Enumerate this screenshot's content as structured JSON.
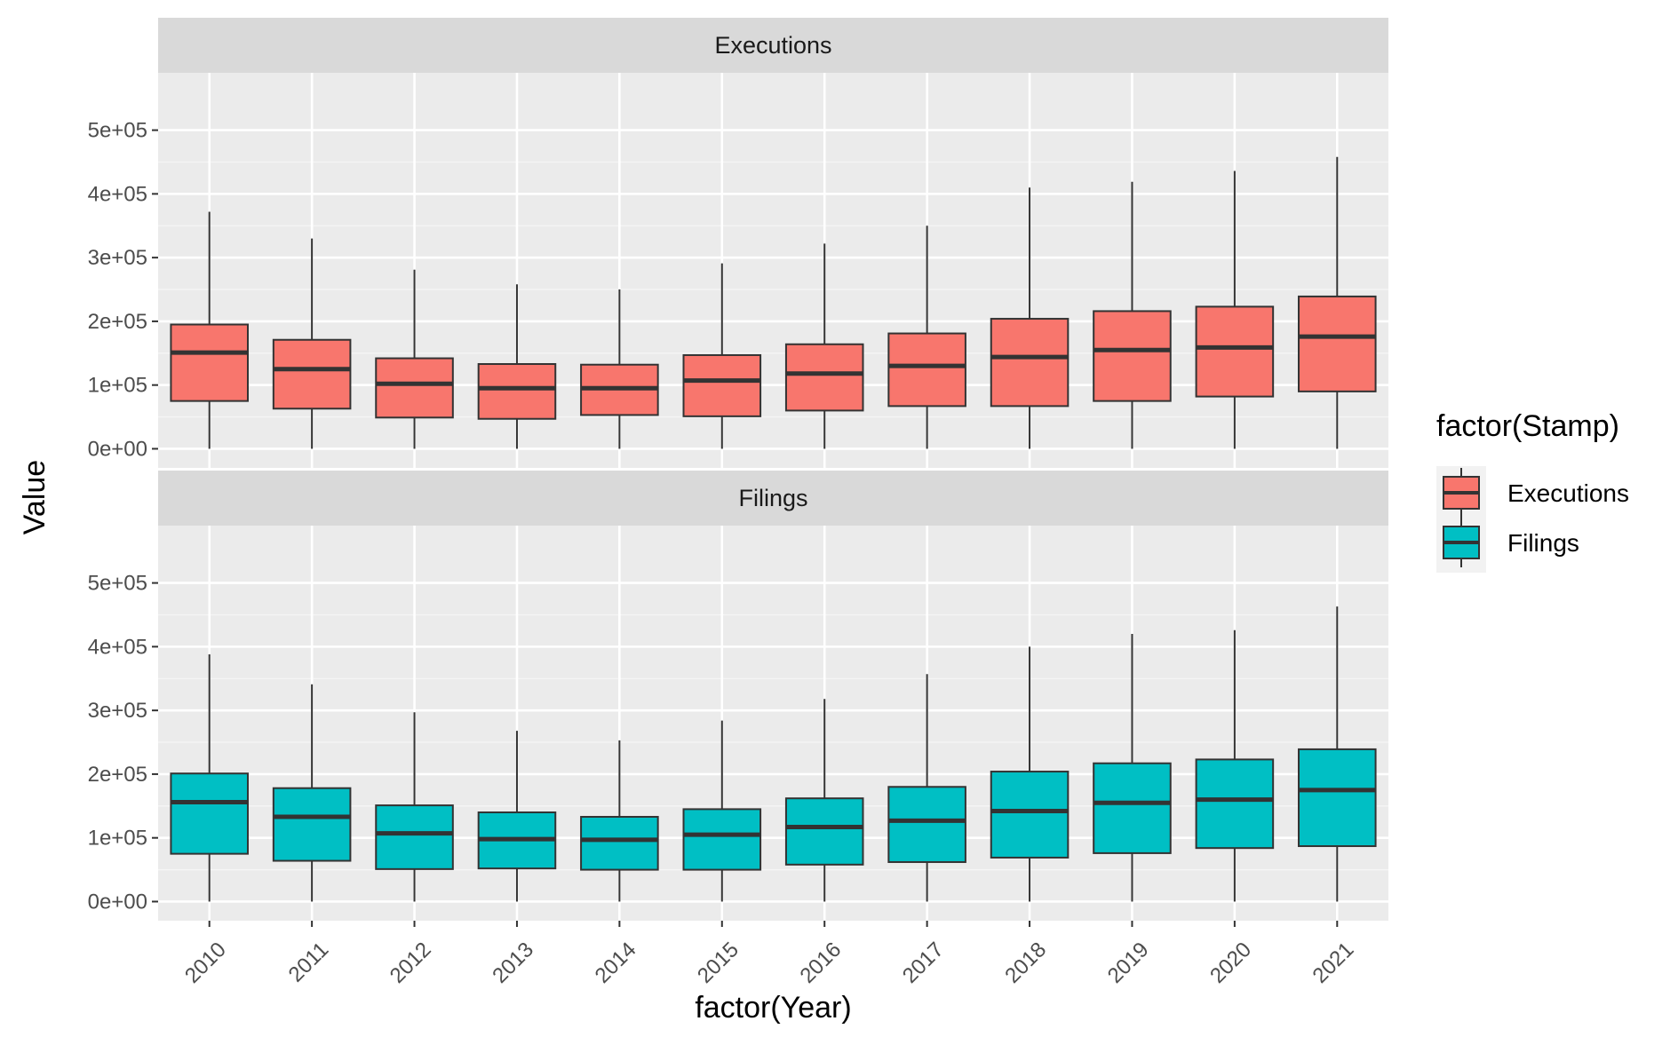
{
  "chart_data": {
    "type": "boxplot",
    "facet_variable": "Stamp",
    "xlabel": "factor(Year)",
    "ylabel": "Value",
    "ylim": [
      -30000,
      590000
    ],
    "y_ticks": [
      0,
      100000,
      200000,
      300000,
      400000,
      500000
    ],
    "y_tick_labels": [
      "0e+00",
      "1e+05",
      "2e+05",
      "3e+05",
      "4e+05",
      "5e+05"
    ],
    "categories": [
      "2010",
      "2011",
      "2012",
      "2013",
      "2014",
      "2015",
      "2016",
      "2017",
      "2018",
      "2019",
      "2020",
      "2021"
    ],
    "grid": true,
    "legend": {
      "title": "factor(Stamp)",
      "position": "right",
      "items": [
        {
          "label": "Executions",
          "color": "#F8766D"
        },
        {
          "label": "Filings",
          "color": "#00BFC4"
        }
      ]
    },
    "panels": [
      {
        "label": "Executions",
        "color": "#F8766D",
        "boxes": [
          {
            "year": "2010",
            "min": 0,
            "q1": 75000,
            "median": 151000,
            "q3": 195000,
            "max": 372000
          },
          {
            "year": "2011",
            "min": 0,
            "q1": 63000,
            "median": 125000,
            "q3": 171000,
            "max": 330000
          },
          {
            "year": "2012",
            "min": 0,
            "q1": 49000,
            "median": 102000,
            "q3": 142000,
            "max": 281000
          },
          {
            "year": "2013",
            "min": 0,
            "q1": 47000,
            "median": 95000,
            "q3": 133000,
            "max": 258000
          },
          {
            "year": "2014",
            "min": 0,
            "q1": 53000,
            "median": 95000,
            "q3": 132000,
            "max": 250000
          },
          {
            "year": "2015",
            "min": 0,
            "q1": 51000,
            "median": 107000,
            "q3": 147000,
            "max": 291000
          },
          {
            "year": "2016",
            "min": 0,
            "q1": 60000,
            "median": 118000,
            "q3": 164000,
            "max": 322000
          },
          {
            "year": "2017",
            "min": 0,
            "q1": 67000,
            "median": 130000,
            "q3": 181000,
            "max": 350000
          },
          {
            "year": "2018",
            "min": 0,
            "q1": 67000,
            "median": 144000,
            "q3": 204000,
            "max": 410000
          },
          {
            "year": "2019",
            "min": 0,
            "q1": 75000,
            "median": 155000,
            "q3": 216000,
            "max": 419000
          },
          {
            "year": "2020",
            "min": 0,
            "q1": 82000,
            "median": 159000,
            "q3": 223000,
            "max": 436000
          },
          {
            "year": "2021",
            "min": 0,
            "q1": 90000,
            "median": 176000,
            "q3": 239000,
            "max": 458000
          }
        ]
      },
      {
        "label": "Filings",
        "color": "#00BFC4",
        "boxes": [
          {
            "year": "2010",
            "min": 0,
            "q1": 75000,
            "median": 156000,
            "q3": 201000,
            "max": 388000
          },
          {
            "year": "2011",
            "min": 0,
            "q1": 64000,
            "median": 133000,
            "q3": 178000,
            "max": 341000
          },
          {
            "year": "2012",
            "min": 0,
            "q1": 51000,
            "median": 107000,
            "q3": 151000,
            "max": 297000
          },
          {
            "year": "2013",
            "min": 0,
            "q1": 52000,
            "median": 98000,
            "q3": 140000,
            "max": 268000
          },
          {
            "year": "2014",
            "min": 0,
            "q1": 50000,
            "median": 97000,
            "q3": 133000,
            "max": 253000
          },
          {
            "year": "2015",
            "min": 0,
            "q1": 50000,
            "median": 105000,
            "q3": 145000,
            "max": 284000
          },
          {
            "year": "2016",
            "min": 0,
            "q1": 58000,
            "median": 117000,
            "q3": 162000,
            "max": 318000
          },
          {
            "year": "2017",
            "min": 0,
            "q1": 62000,
            "median": 127000,
            "q3": 180000,
            "max": 357000
          },
          {
            "year": "2018",
            "min": 0,
            "q1": 69000,
            "median": 142000,
            "q3": 204000,
            "max": 400000
          },
          {
            "year": "2019",
            "min": 0,
            "q1": 76000,
            "median": 155000,
            "q3": 217000,
            "max": 420000
          },
          {
            "year": "2020",
            "min": 0,
            "q1": 84000,
            "median": 160000,
            "q3": 223000,
            "max": 426000
          },
          {
            "year": "2021",
            "min": 0,
            "q1": 87000,
            "median": 175000,
            "q3": 239000,
            "max": 463000
          }
        ]
      }
    ]
  }
}
